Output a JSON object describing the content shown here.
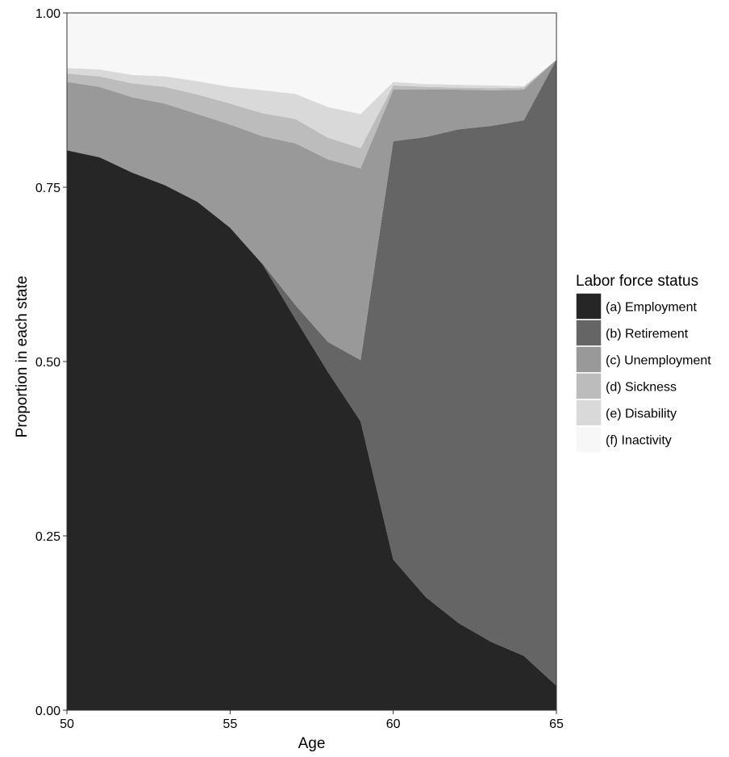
{
  "chart_data": {
    "type": "area",
    "stacked": true,
    "xlabel": "Age",
    "ylabel": "Proportion in each state",
    "xlim": [
      50,
      65
    ],
    "ylim": [
      0,
      1
    ],
    "x_ticks": [
      50,
      55,
      60,
      65
    ],
    "y_ticks": [
      0,
      0.25,
      0.5,
      0.75,
      1
    ],
    "y_tick_labels": [
      "0.00",
      "0.25",
      "0.50",
      "0.75",
      "1.00"
    ],
    "grid": false,
    "legend": {
      "title": "Labor force status",
      "position": "right"
    },
    "x": [
      50,
      51,
      52,
      53,
      54,
      55,
      56,
      57,
      58,
      59,
      60,
      61,
      62,
      63,
      64,
      65
    ],
    "series": [
      {
        "name": "(a) Employment",
        "color": "#262626",
        "values": [
          0.803,
          0.793,
          0.771,
          0.753,
          0.729,
          0.692,
          0.639,
          0.561,
          0.485,
          0.414,
          0.216,
          0.162,
          0.125,
          0.098,
          0.078,
          0.035
        ]
      },
      {
        "name": "(b) Retirement",
        "color": "#656565",
        "values": [
          0.0,
          0.0,
          0.0,
          0.0,
          0.0,
          0.0,
          0.001,
          0.02,
          0.043,
          0.088,
          0.6,
          0.66,
          0.708,
          0.74,
          0.768,
          0.898
        ]
      },
      {
        "name": "(c) Unemployment",
        "color": "#999999",
        "values": [
          0.098,
          0.101,
          0.108,
          0.117,
          0.126,
          0.148,
          0.183,
          0.232,
          0.262,
          0.275,
          0.074,
          0.068,
          0.057,
          0.051,
          0.044,
          0.0
        ]
      },
      {
        "name": "(d) Sickness",
        "color": "#bcbcbc",
        "values": [
          0.012,
          0.015,
          0.02,
          0.024,
          0.028,
          0.03,
          0.033,
          0.035,
          0.031,
          0.029,
          0.006,
          0.004,
          0.003,
          0.003,
          0.003,
          0.0
        ]
      },
      {
        "name": "(e) Disability",
        "color": "#d9d9d9",
        "values": [
          0.008,
          0.01,
          0.012,
          0.015,
          0.019,
          0.024,
          0.033,
          0.036,
          0.044,
          0.049,
          0.005,
          0.004,
          0.004,
          0.004,
          0.002,
          0.0
        ]
      },
      {
        "name": "(f) Inactivity",
        "color": "#f7f7f7",
        "values": [
          0.079,
          0.081,
          0.089,
          0.091,
          0.098,
          0.106,
          0.111,
          0.116,
          0.135,
          0.145,
          0.099,
          0.102,
          0.103,
          0.104,
          0.105,
          0.067
        ]
      }
    ]
  }
}
